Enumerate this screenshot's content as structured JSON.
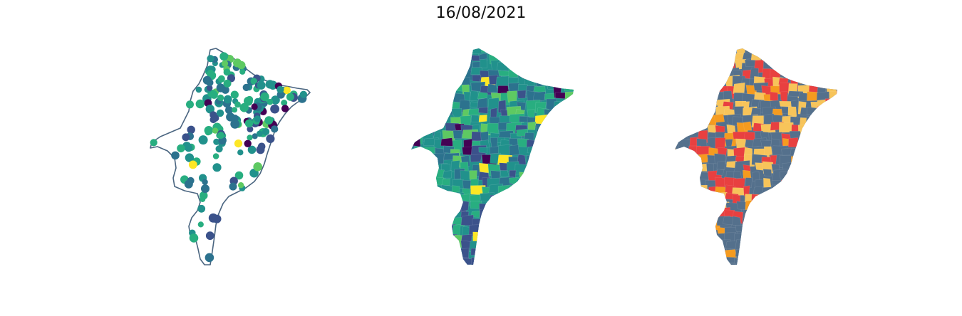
{
  "figure": {
    "title": "16/08/2021"
  },
  "colors": {
    "outline": "#4a6580",
    "viridis": [
      "#440154",
      "#3b528b",
      "#2c728e",
      "#21918c",
      "#28ae80",
      "#5ec962",
      "#fde725"
    ],
    "risk": [
      "#e84040",
      "#f7c45a",
      "#f59b1f",
      "#54708c"
    ]
  },
  "panels": [
    {
      "id": "points",
      "kind": "points"
    },
    {
      "id": "choropleth",
      "kind": "choropleth"
    },
    {
      "id": "risk",
      "kind": "risk-categories"
    }
  ]
}
